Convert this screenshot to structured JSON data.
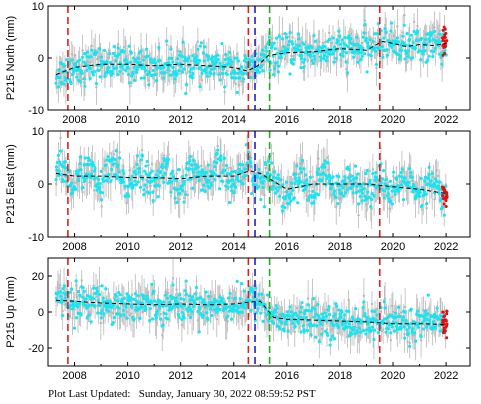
{
  "footer": {
    "text": "Plot Last Updated:   Sunday, January 30, 2022 08:59:52 PST"
  },
  "colors": {
    "raw_points": "#b8b8b8",
    "filtered_points": "#14e6f4",
    "recent_points": "#e01010",
    "trend_line": "#000000",
    "event_red": "#e02020",
    "event_blue": "#2020d0",
    "event_green": "#20b020"
  },
  "chart_data": [
    {
      "type": "scatter",
      "station_component": "North",
      "ylabel": "P215 North (mm)",
      "xlim": [
        2007.0,
        2022.9
      ],
      "ylim": [
        -10,
        10
      ],
      "x_ticks": [
        2008,
        2010,
        2012,
        2014,
        2016,
        2018,
        2020,
        2022
      ],
      "x_tick_labels": [
        "2008",
        "2010",
        "2012",
        "2014",
        "2016",
        "2018",
        "2020",
        "2022"
      ],
      "y_ticks": [
        -10,
        0,
        10
      ],
      "y_tick_labels": [
        "-10",
        "0",
        "10"
      ],
      "event_lines": [
        {
          "x": 2007.75,
          "color": "red"
        },
        {
          "x": 2014.55,
          "color": "red"
        },
        {
          "x": 2014.8,
          "color": "blue"
        },
        {
          "x": 2015.35,
          "color": "green"
        },
        {
          "x": 2019.5,
          "color": "red"
        }
      ],
      "trend": {
        "x": [
          2007.3,
          2008.0,
          2009.0,
          2010.0,
          2011.0,
          2012.0,
          2013.0,
          2014.0,
          2014.5,
          2014.9,
          2015.3,
          2016.0,
          2017.0,
          2018.0,
          2019.0,
          2019.6,
          2020.0,
          2020.5,
          2021.0,
          2021.5,
          2022.0
        ],
        "y": [
          -3.2,
          -1.8,
          -1.2,
          -1.2,
          -1.5,
          -1.2,
          -1.5,
          -1.8,
          -2.5,
          -1.5,
          0.5,
          1.0,
          1.2,
          1.8,
          1.5,
          3.2,
          2.8,
          2.2,
          2.6,
          2.4,
          2.8
        ]
      },
      "scatter": {
        "noise": 1.6,
        "error_bar": 2.6
      },
      "recent_span": [
        2021.85,
        2022.05
      ]
    },
    {
      "type": "scatter",
      "station_component": "East",
      "ylabel": "P215 East (mm)",
      "xlim": [
        2007.0,
        2022.9
      ],
      "ylim": [
        -10,
        10
      ],
      "x_ticks": [
        2008,
        2010,
        2012,
        2014,
        2016,
        2018,
        2020,
        2022
      ],
      "x_tick_labels": [
        "2008",
        "2010",
        "2012",
        "2014",
        "2016",
        "2018",
        "2020",
        "2022"
      ],
      "y_ticks": [
        -10,
        0,
        10
      ],
      "y_tick_labels": [
        "-10",
        "0",
        "10"
      ],
      "event_lines": [
        {
          "x": 2007.75,
          "color": "red"
        },
        {
          "x": 2014.55,
          "color": "red"
        },
        {
          "x": 2014.8,
          "color": "blue"
        },
        {
          "x": 2015.35,
          "color": "green"
        },
        {
          "x": 2019.5,
          "color": "red"
        }
      ],
      "trend": {
        "x": [
          2007.3,
          2008.0,
          2009.0,
          2010.0,
          2011.0,
          2012.0,
          2013.0,
          2014.0,
          2014.6,
          2015.0,
          2015.5,
          2016.0,
          2017.0,
          2018.0,
          2019.0,
          2020.0,
          2021.0,
          2022.0
        ],
        "y": [
          2.0,
          1.5,
          1.5,
          1.2,
          1.2,
          1.0,
          1.5,
          1.5,
          2.5,
          2.0,
          0.5,
          -1.0,
          0.0,
          0.0,
          0.0,
          -0.5,
          -1.0,
          -1.8
        ]
      },
      "seasonal_amplitude": 1.8,
      "scatter": {
        "noise": 1.6,
        "error_bar": 2.8
      },
      "recent_span": [
        2021.85,
        2022.05
      ]
    },
    {
      "type": "scatter",
      "station_component": "Up",
      "ylabel": "P215 Up (mm)",
      "xlim": [
        2007.0,
        2022.9
      ],
      "ylim": [
        -30,
        30
      ],
      "x_ticks": [
        2008,
        2010,
        2012,
        2014,
        2016,
        2018,
        2020,
        2022
      ],
      "x_tick_labels": [
        "2008",
        "2010",
        "2012",
        "2014",
        "2016",
        "2018",
        "2020",
        "2022"
      ],
      "y_ticks": [
        -20,
        0,
        20
      ],
      "y_tick_labels": [
        "-20",
        "0",
        "20"
      ],
      "event_lines": [
        {
          "x": 2007.75,
          "color": "red"
        },
        {
          "x": 2014.55,
          "color": "red"
        },
        {
          "x": 2014.8,
          "color": "blue"
        },
        {
          "x": 2015.35,
          "color": "green"
        },
        {
          "x": 2019.5,
          "color": "red"
        }
      ],
      "trend": {
        "x": [
          2007.3,
          2008.0,
          2009.0,
          2010.0,
          2011.0,
          2012.0,
          2013.0,
          2014.0,
          2014.6,
          2015.0,
          2015.5,
          2016.0,
          2017.0,
          2018.0,
          2019.0,
          2020.0,
          2021.0,
          2022.0
        ],
        "y": [
          6.5,
          6.0,
          5.0,
          4.5,
          4.0,
          4.5,
          4.0,
          4.5,
          5.5,
          6.0,
          -3.0,
          -4.0,
          -4.5,
          -5.0,
          -5.5,
          -6.5,
          -6.5,
          -7.0
        ]
      },
      "scatter": {
        "noise": 4.5,
        "error_bar": 8.0
      },
      "recent_span": [
        2021.85,
        2022.05
      ]
    }
  ]
}
